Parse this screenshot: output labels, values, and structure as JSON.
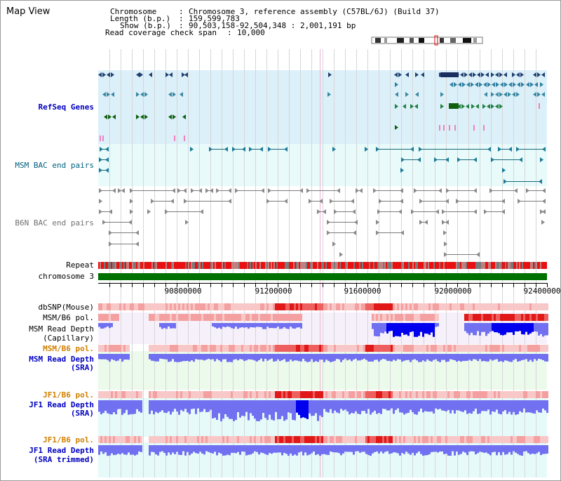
{
  "view": {
    "title": "Map View"
  },
  "header": {
    "chromosome_label": "Chromosome",
    "chromosome_value": "Chromosome 3, reference assembly (C57BL/6J) (Build 37)",
    "length_label": "Length (b.p.)",
    "length_value": "159,599,783",
    "show_label": "Show (b.p.)",
    "show_value": "90,503,158-92,504,348 : 2,001,191 bp",
    "coverage_label": "Read coverage check span",
    "coverage_value": "10,000"
  },
  "tracks": {
    "refseq": "RefSeq Genes",
    "msm_bac": "MSM BAC end pairs",
    "b6n_bac": "B6N BAC end pairs",
    "repeat": "Repeat",
    "chromosome": "chromosome 3",
    "dbsnp": "dbSNP(Mouse)",
    "msm_b6_pol": "MSM/B6 pol.",
    "msm_read_depth_cap_1": "MSM Read Depth",
    "msm_read_depth_cap_2": "(Capillary)",
    "msm_b6_pol_2": "MSM/B6 pol.",
    "msm_read_depth_sra_1": "MSM Read Depth",
    "msm_read_depth_sra_2": "(SRA)",
    "jf1_b6_pol": "JF1/B6 pol.",
    "jf1_read_depth_1": "JF1 Read Depth",
    "jf1_read_depth_2": "(SRA)",
    "jf1_b6_pol_2": "JF1/B6 pol.",
    "jf1_trim_1": "JF1 Read Depth",
    "jf1_trim_2": "(SRA trimmed)"
  },
  "axis": {
    "ticks": [
      "90800000",
      "91200000",
      "91600000",
      "92000000",
      "92400000"
    ]
  },
  "colors": {
    "refseq_bg": "#dcf0fa",
    "bac_bg": "#e8fafa",
    "pol_light": "#f8c8c8",
    "pol_dark": "#e01818",
    "depth_fill": "#7070f0",
    "depth_strong": "#0000ee",
    "repeat_red": "#e81010",
    "chrom_green": "#007000",
    "orange": "#d08000",
    "label_blue": "#0000c0"
  }
}
